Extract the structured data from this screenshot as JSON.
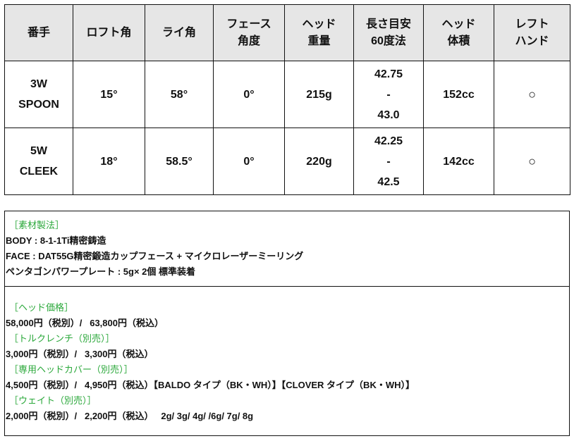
{
  "table": {
    "headers": [
      [
        "番手"
      ],
      [
        "ロフト角"
      ],
      [
        "ライ角"
      ],
      [
        "フェース",
        "角度"
      ],
      [
        "ヘッド",
        "重量"
      ],
      [
        "長さ目安",
        "60度法"
      ],
      [
        "ヘッド",
        "体積"
      ],
      [
        "レフト",
        "ハンド"
      ]
    ],
    "rows": [
      {
        "club": [
          "3W",
          "SPOON"
        ],
        "loft": "15°",
        "lie": "58°",
        "face": "0°",
        "weight": "215g",
        "length": [
          "42.75",
          "-",
          "43.0"
        ],
        "volume": "152cc",
        "left": "○"
      },
      {
        "club": [
          "5W",
          "CLEEK"
        ],
        "loft": "18°",
        "lie": "58.5°",
        "face": "0°",
        "weight": "220g",
        "length": [
          "42.25",
          "-",
          "42.5"
        ],
        "volume": "142cc",
        "left": "○"
      }
    ]
  },
  "materials": {
    "heading": "［素材製法］",
    "lines": [
      "BODY : 8-1-1Ti精密鋳造",
      "FACE : DAT55G精密鍛造カップフェース + マイクロレーザーミーリング",
      "ペンタゴンパワープレート : 5g× 2個 標準装着"
    ]
  },
  "pricing": [
    {
      "heading": "［ヘッド価格］",
      "text": "58,000円（税別）/   63,800円（税込）"
    },
    {
      "heading": "［トルクレンチ（別売）］",
      "text": "3,000円（税別）/   3,300円（税込）"
    },
    {
      "heading": "［専用ヘッドカバー（別売）］",
      "text": "4,500円（税別）/   4,950円（税込）【BALDO タイプ（BK・WH）】【CLOVER タイプ（BK・WH）】"
    },
    {
      "heading": "［ウェイト（別売）］",
      "text": "2,000円（税別）/   2,200円（税込）   2g/ 3g/ 4g/ /6g/ 7g/ 8g"
    }
  ],
  "colors": {
    "header_bg": "#e6e6e6",
    "heading_green": "#2aa83a"
  }
}
